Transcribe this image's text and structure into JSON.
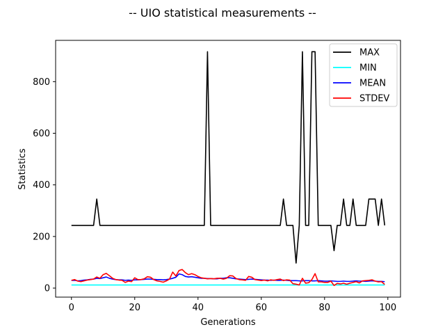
{
  "chart_data": {
    "type": "line",
    "title": "-- UIO statistical measurements --",
    "xlabel": "Generations",
    "ylabel": "Statistics",
    "xlim": [
      -5,
      104
    ],
    "ylim": [
      -35,
      960
    ],
    "xticks": [
      0,
      20,
      40,
      60,
      80,
      100
    ],
    "yticks": [
      0,
      200,
      400,
      600,
      800
    ],
    "legend_position": "top-right",
    "grid": false,
    "x": [
      0,
      1,
      2,
      3,
      4,
      5,
      6,
      7,
      8,
      9,
      10,
      11,
      12,
      13,
      14,
      15,
      16,
      17,
      18,
      19,
      20,
      21,
      22,
      23,
      24,
      25,
      26,
      27,
      28,
      29,
      30,
      31,
      32,
      33,
      34,
      35,
      36,
      37,
      38,
      39,
      40,
      41,
      42,
      43,
      44,
      45,
      46,
      47,
      48,
      49,
      50,
      51,
      52,
      53,
      54,
      55,
      56,
      57,
      58,
      59,
      60,
      61,
      62,
      63,
      64,
      65,
      66,
      67,
      68,
      69,
      70,
      71,
      72,
      73,
      74,
      75,
      76,
      77,
      78,
      79,
      80,
      81,
      82,
      83,
      84,
      85,
      86,
      87,
      88,
      89,
      90,
      91,
      92,
      93,
      94,
      95,
      96,
      97,
      98,
      99
    ],
    "series": [
      {
        "name": "MAX",
        "color": "#000000",
        "values": [
          243,
          243,
          243,
          243,
          243,
          243,
          243,
          243,
          345,
          243,
          243,
          243,
          243,
          243,
          243,
          243,
          243,
          243,
          243,
          243,
          243,
          243,
          243,
          243,
          243,
          243,
          243,
          243,
          243,
          243,
          243,
          243,
          243,
          243,
          243,
          243,
          243,
          243,
          243,
          243,
          243,
          243,
          243,
          916,
          243,
          243,
          243,
          243,
          243,
          243,
          243,
          243,
          243,
          243,
          243,
          243,
          243,
          243,
          243,
          243,
          243,
          243,
          243,
          243,
          243,
          243,
          243,
          345,
          243,
          243,
          243,
          97,
          243,
          916,
          243,
          243,
          916,
          916,
          243,
          243,
          243,
          243,
          243,
          145,
          243,
          243,
          345,
          243,
          243,
          345,
          243,
          243,
          243,
          243,
          345,
          345,
          345,
          243,
          345,
          243
        ]
      },
      {
        "name": "MIN",
        "color": "#00ffff",
        "values": [
          12,
          12,
          12,
          12,
          12,
          12,
          12,
          12,
          12,
          12,
          12,
          12,
          12,
          12,
          12,
          12,
          12,
          12,
          12,
          12,
          12,
          12,
          12,
          12,
          12,
          12,
          12,
          12,
          12,
          12,
          12,
          12,
          12,
          12,
          12,
          12,
          12,
          12,
          12,
          12,
          12,
          12,
          12,
          12,
          12,
          12,
          12,
          12,
          12,
          12,
          12,
          12,
          12,
          12,
          12,
          12,
          12,
          12,
          12,
          12,
          12,
          12,
          12,
          12,
          12,
          12,
          12,
          12,
          12,
          12,
          12,
          12,
          12,
          12,
          12,
          12,
          12,
          12,
          12,
          12,
          12,
          12,
          12,
          12,
          12,
          12,
          12,
          12,
          12,
          12,
          12,
          12,
          12,
          12,
          12,
          12,
          12,
          12,
          12,
          12
        ]
      },
      {
        "name": "MEAN",
        "color": "#0000ff",
        "values": [
          30,
          30,
          28,
          29,
          31,
          32,
          34,
          35,
          38,
          37,
          40,
          43,
          38,
          35,
          33,
          32,
          32,
          30,
          31,
          30,
          32,
          32,
          33,
          34,
          35,
          35,
          34,
          33,
          33,
          32,
          33,
          35,
          38,
          42,
          55,
          52,
          45,
          43,
          44,
          42,
          40,
          38,
          38,
          37,
          37,
          36,
          36,
          38,
          38,
          40,
          40,
          38,
          36,
          35,
          34,
          33,
          34,
          35,
          34,
          33,
          32,
          31,
          31,
          30,
          31,
          30,
          30,
          31,
          30,
          29,
          29,
          29,
          28,
          28,
          29,
          29,
          28,
          28,
          29,
          28,
          27,
          27,
          28,
          27,
          26,
          26,
          27,
          26,
          26,
          27,
          28,
          27,
          27,
          26,
          27,
          28,
          27,
          26,
          26,
          25
        ]
      },
      {
        "name": "STDEV",
        "color": "#ff0000",
        "values": [
          30,
          33,
          27,
          25,
          28,
          31,
          33,
          35,
          43,
          38,
          52,
          57,
          48,
          38,
          33,
          31,
          30,
          22,
          27,
          25,
          40,
          33,
          33,
          36,
          44,
          42,
          33,
          28,
          26,
          23,
          28,
          35,
          62,
          47,
          68,
          72,
          60,
          52,
          56,
          52,
          45,
          40,
          38,
          36,
          37,
          36,
          38,
          38,
          35,
          38,
          48,
          47,
          37,
          33,
          32,
          30,
          45,
          42,
          33,
          31,
          29,
          31,
          28,
          32,
          30,
          33,
          35,
          29,
          32,
          31,
          17,
          15,
          12,
          38,
          19,
          21,
          33,
          56,
          24,
          24,
          22,
          22,
          27,
          10,
          18,
          16,
          19,
          15,
          19,
          22,
          25,
          20,
          28,
          29,
          30,
          32,
          27,
          24,
          25,
          14
        ]
      }
    ]
  }
}
